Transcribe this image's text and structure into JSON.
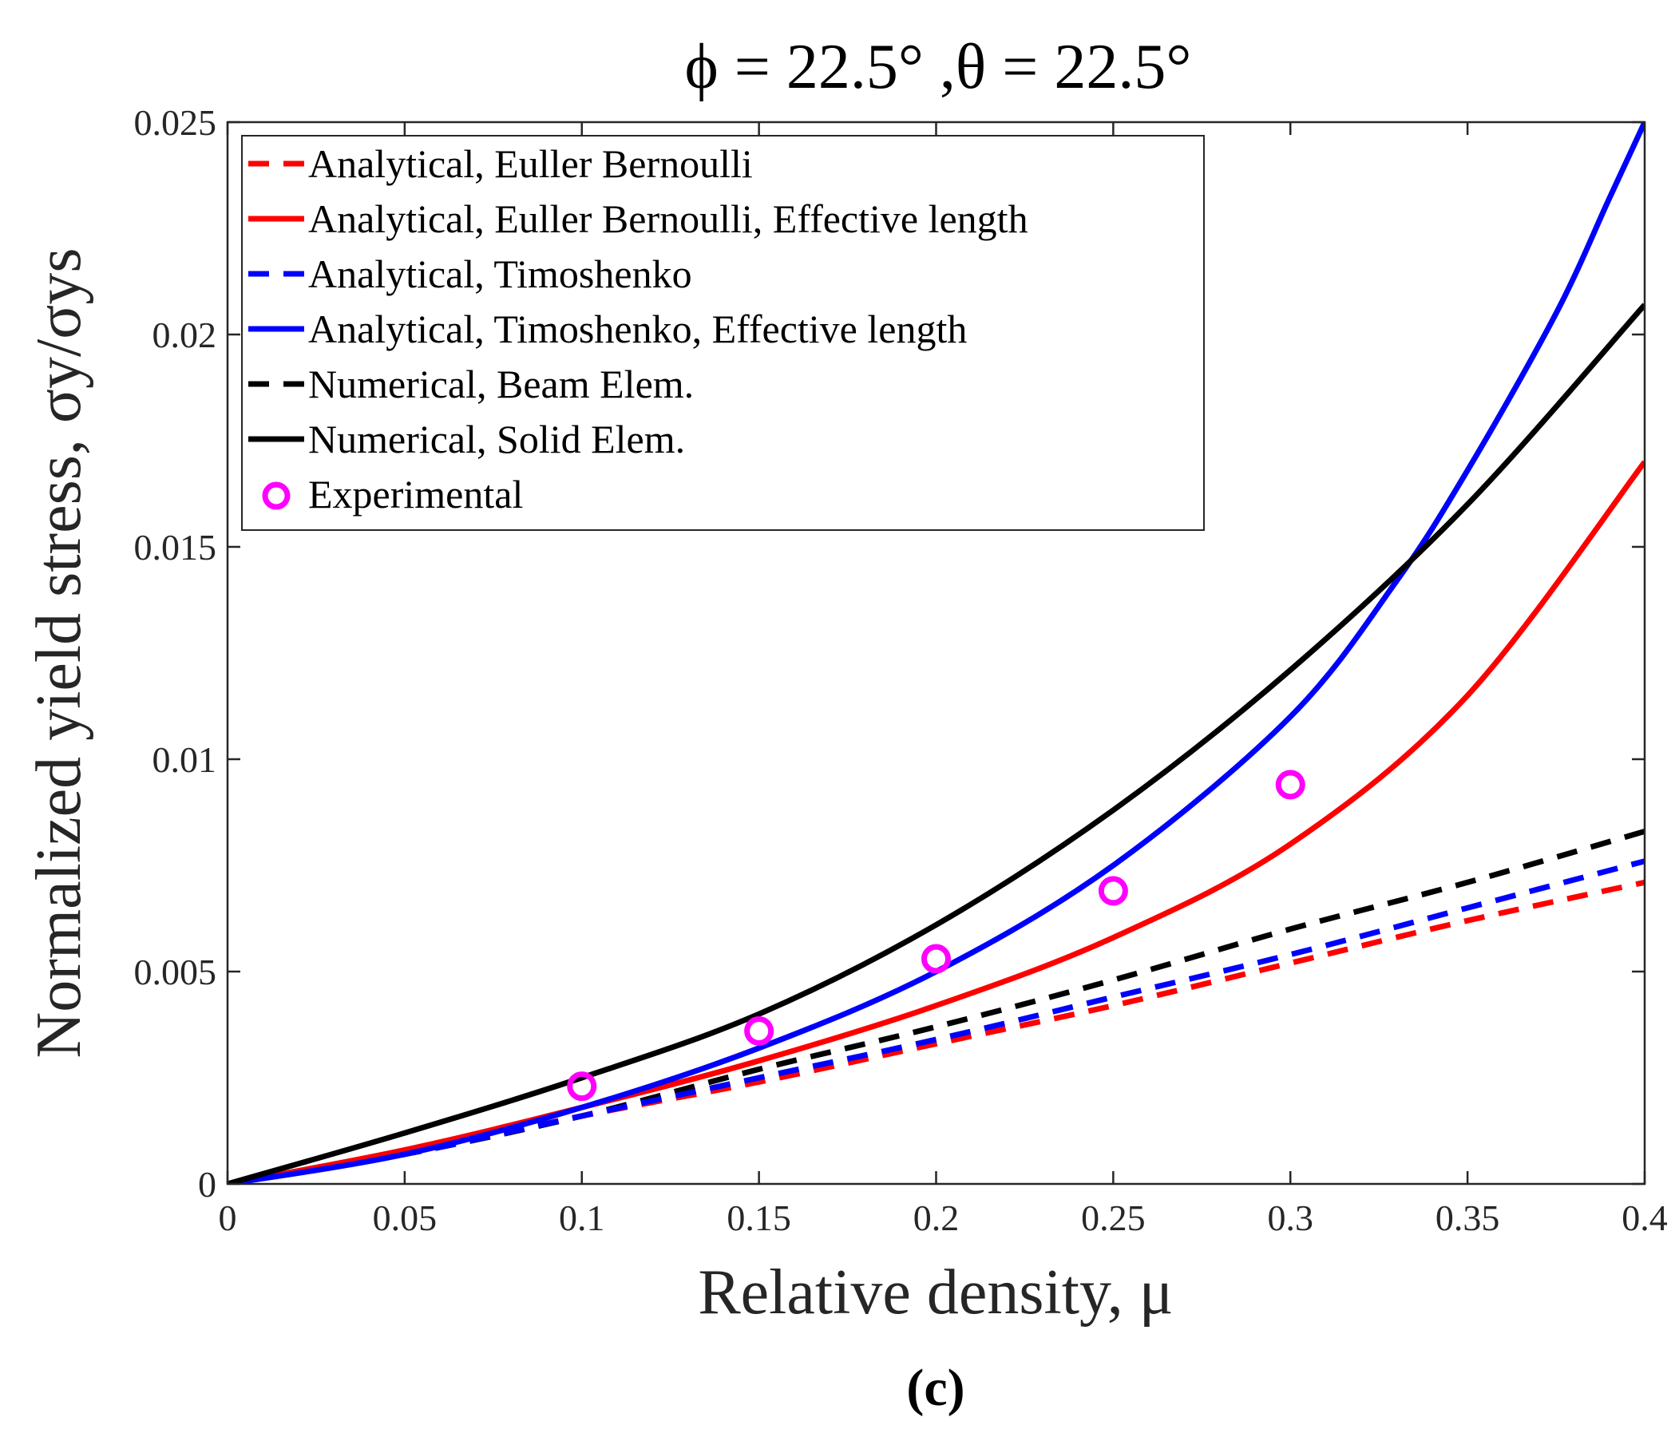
{
  "chart_data": {
    "type": "line",
    "title": "ϕ = 22.5° ,θ = 22.5°",
    "xlabel": "Relative density, μ",
    "ylabel": "Normalized yield stress, σy/σys",
    "caption": "(c)",
    "xlim": [
      0,
      0.4
    ],
    "ylim": [
      0,
      0.025
    ],
    "xticks": [
      0,
      0.05,
      0.1,
      0.15,
      0.2,
      0.25,
      0.3,
      0.35,
      0.4
    ],
    "xtick_labels": [
      "0",
      "0.05",
      "0.1",
      "0.15",
      "0.2",
      "0.25",
      "0.3",
      "0.35",
      "0.4"
    ],
    "yticks": [
      0,
      0.005,
      0.01,
      0.015,
      0.02,
      0.025
    ],
    "ytick_labels": [
      "0",
      "0.005",
      "0.01",
      "0.015",
      "0.02",
      "0.025"
    ],
    "grid": false,
    "legend_position": "top-left",
    "series": [
      {
        "name": "Analytical, Euller Bernoulli",
        "color": "#ff0000",
        "style": "dashed",
        "x": [
          0,
          0.05,
          0.1,
          0.15,
          0.2,
          0.25,
          0.3,
          0.35,
          0.4
        ],
        "y": [
          0,
          0.0007,
          0.0016,
          0.0024,
          0.0033,
          0.0042,
          0.0052,
          0.0062,
          0.0071
        ]
      },
      {
        "name": "Analytical, Euller Bernoulli, Effective length",
        "color": "#ff0000",
        "style": "solid",
        "x": [
          0,
          0.05,
          0.1,
          0.15,
          0.2,
          0.25,
          0.3,
          0.35,
          0.4
        ],
        "y": [
          0,
          0.0008,
          0.0018,
          0.0029,
          0.0042,
          0.0058,
          0.008,
          0.0115,
          0.017
        ]
      },
      {
        "name": "Analytical, Timoshenko",
        "color": "#0000ff",
        "style": "dashed",
        "x": [
          0,
          0.05,
          0.1,
          0.15,
          0.2,
          0.25,
          0.3,
          0.35,
          0.4
        ],
        "y": [
          0,
          0.0007,
          0.0016,
          0.0025,
          0.0034,
          0.0044,
          0.0054,
          0.0065,
          0.0076
        ]
      },
      {
        "name": "Analytical, Timoshenko, Effective length",
        "color": "#0000ff",
        "style": "solid",
        "x": [
          0,
          0.05,
          0.1,
          0.15,
          0.2,
          0.25,
          0.3,
          0.33,
          0.35,
          0.375,
          0.39,
          0.4
        ],
        "y": [
          0,
          0.0007,
          0.0018,
          0.0032,
          0.005,
          0.0075,
          0.011,
          0.0142,
          0.0168,
          0.0205,
          0.0232,
          0.025
        ]
      },
      {
        "name": "Numerical, Beam Elem.",
        "color": "#000000",
        "style": "dashed",
        "x": [
          0,
          0.05,
          0.1,
          0.15,
          0.2,
          0.25,
          0.3,
          0.35,
          0.4
        ],
        "y": [
          0,
          0.0007,
          0.0016,
          0.0027,
          0.0037,
          0.0048,
          0.006,
          0.0071,
          0.0083
        ]
      },
      {
        "name": "Numerical, Solid Elem.",
        "color": "#000000",
        "style": "solid",
        "x": [
          0,
          0.05,
          0.1,
          0.15,
          0.2,
          0.25,
          0.3,
          0.35,
          0.4
        ],
        "y": [
          0,
          0.0012,
          0.0025,
          0.004,
          0.0061,
          0.0088,
          0.0121,
          0.016,
          0.0207
        ]
      },
      {
        "name": "Experimental",
        "color": "#ff00ff",
        "style": "markers",
        "x": [
          0.1,
          0.15,
          0.2,
          0.25,
          0.3
        ],
        "y": [
          0.0023,
          0.0036,
          0.0053,
          0.0069,
          0.0094
        ]
      }
    ]
  }
}
